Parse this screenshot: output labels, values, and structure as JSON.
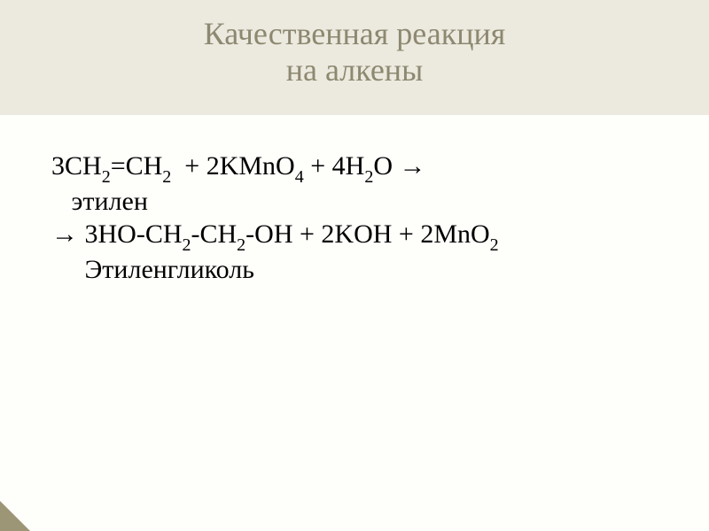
{
  "colors": {
    "background": "#fefefb",
    "title_band_bg": "#eceadf",
    "title_text": "#8d8870",
    "body_text": "#000000",
    "corner_fold": "#9c9576"
  },
  "title": {
    "line1": "Качественная реакция",
    "line2": "на алкены",
    "fontsize": 36
  },
  "content": {
    "fontsize": 30,
    "sub_fontsize": 20,
    "eq_line1": {
      "parts": [
        {
          "t": "3CH"
        },
        {
          "t": "2",
          "sub": true
        },
        {
          "t": "=CH"
        },
        {
          "t": "2",
          "sub": true
        },
        {
          "t": "  + 2KMnO"
        },
        {
          "t": "4",
          "sub": true
        },
        {
          "t": " + 4H"
        },
        {
          "t": "2",
          "sub": true
        },
        {
          "t": "O → "
        }
      ]
    },
    "eq_label1": "   этилен",
    "eq_line2": {
      "parts": [
        {
          "t": "→ 3HO-CH"
        },
        {
          "t": "2",
          "sub": true
        },
        {
          "t": "-CH"
        },
        {
          "t": "2",
          "sub": true
        },
        {
          "t": "-OH + 2KOH + 2MnO"
        },
        {
          "t": "2",
          "sub": true
        }
      ]
    },
    "eq_label2": "     Этиленгликоль"
  }
}
